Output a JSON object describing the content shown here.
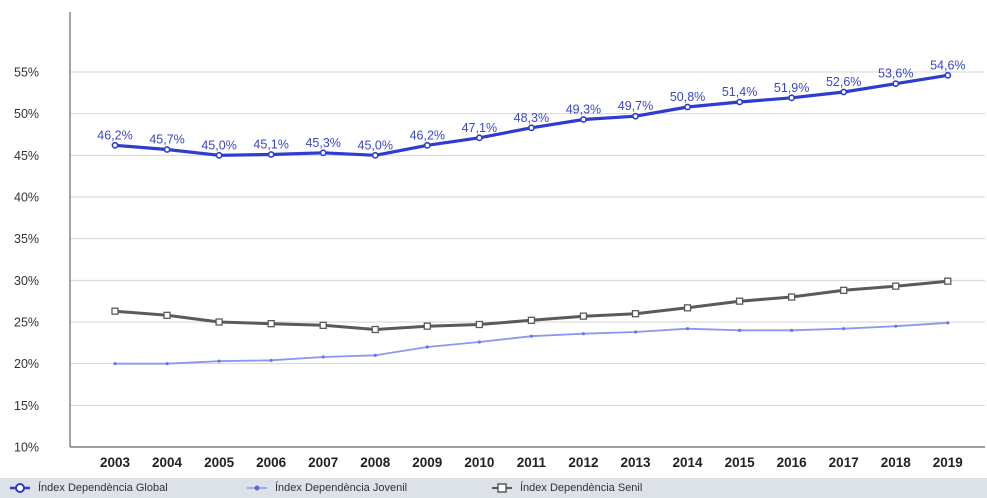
{
  "chart_data": {
    "type": "line",
    "title": "",
    "xlabel": "",
    "ylabel": "",
    "ylim": [
      10,
      55
    ],
    "y_ticks": [
      "10%",
      "15%",
      "20%",
      "25%",
      "30%",
      "35%",
      "40%",
      "45%",
      "50%",
      "55%"
    ],
    "grid": true,
    "legend_position": "bottom",
    "categories": [
      "2003",
      "2004",
      "2005",
      "2006",
      "2007",
      "2008",
      "2009",
      "2010",
      "2011",
      "2012",
      "2013",
      "2014",
      "2015",
      "2016",
      "2017",
      "2018",
      "2019"
    ],
    "series": [
      {
        "name": "Índex Dependència Global",
        "color": "#2e3dd0",
        "marker": "circle",
        "values": [
          46.2,
          45.7,
          45.0,
          45.1,
          45.3,
          45.0,
          46.2,
          47.1,
          48.3,
          49.3,
          49.7,
          50.8,
          51.4,
          51.9,
          52.6,
          53.6,
          54.6
        ],
        "data_labels": [
          "46,2%",
          "45,7%",
          "45,0%",
          "45,1%",
          "45,3%",
          "45,0%",
          "46,2%",
          "47,1%",
          "48,3%",
          "49,3%",
          "49,7%",
          "50,8%",
          "51,4%",
          "51,9%",
          "52,6%",
          "53,6%",
          "54,6%"
        ]
      },
      {
        "name": "Índex Dependència Jovenil",
        "color": "#8f96f0",
        "marker": "dot",
        "values": [
          20.0,
          20.0,
          20.3,
          20.4,
          20.8,
          21.0,
          22.0,
          22.6,
          23.3,
          23.6,
          23.8,
          24.2,
          24.0,
          24.0,
          24.2,
          24.5,
          24.9
        ]
      },
      {
        "name": "Índex Dependència Senil",
        "color": "#5a5a5a",
        "marker": "square",
        "values": [
          26.3,
          25.8,
          25.0,
          24.8,
          24.6,
          24.1,
          24.5,
          24.7,
          25.2,
          25.7,
          26.0,
          26.7,
          27.5,
          28.0,
          28.8,
          29.3,
          29.9
        ]
      }
    ]
  }
}
